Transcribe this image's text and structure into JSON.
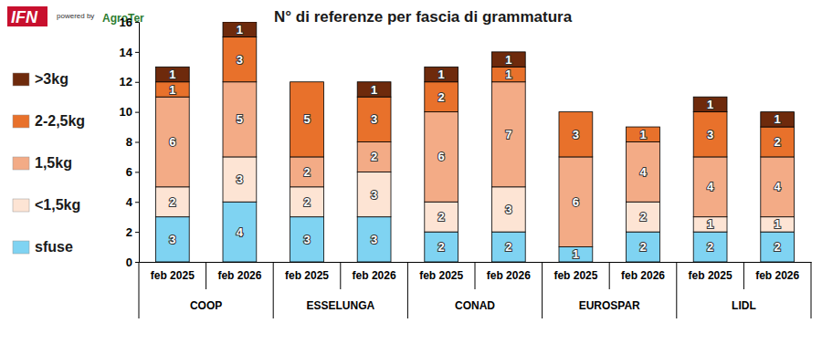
{
  "chart_data": {
    "type": "bar",
    "title": "N° di referenze per fascia di grammatura",
    "annotations": [
      "IFN",
      "powered by",
      "AgroTer"
    ],
    "categories": [
      "feb 2025",
      "feb 2026",
      "feb 2025",
      "feb 2026",
      "feb 2025",
      "feb 2026",
      "feb 2025",
      "feb 2026",
      "feb 2025",
      "feb 2026"
    ],
    "group_labels": [
      "COOP",
      "ESSELUNGA",
      "CONAD",
      "EUROSPAR",
      "LIDL"
    ],
    "series": [
      {
        "name": "sfuse",
        "color": "#7fd3f2",
        "values": [
          3,
          4,
          3,
          3,
          2,
          2,
          1,
          2,
          2,
          2
        ]
      },
      {
        "name": "<1,5kg",
        "color": "#fde4d4",
        "values": [
          2,
          3,
          2,
          3,
          2,
          3,
          null,
          2,
          1,
          1
        ]
      },
      {
        "name": "1,5kg",
        "color": "#f3ab86",
        "values": [
          6,
          5,
          2,
          2,
          6,
          7,
          6,
          4,
          4,
          4
        ]
      },
      {
        "name": "2-2,5kg",
        "color": "#e8712b",
        "values": [
          1,
          3,
          5,
          3,
          2,
          1,
          3,
          1,
          3,
          2
        ]
      },
      {
        "name": ">3kg",
        "color": "#6e2a0c",
        "values": [
          1,
          1,
          null,
          1,
          1,
          1,
          null,
          null,
          1,
          1
        ]
      }
    ],
    "ylim": [
      0,
      16
    ],
    "yticks": [
      0,
      2,
      4,
      6,
      8,
      10,
      12,
      14,
      16
    ],
    "stacked": true,
    "data_labels": true,
    "legend": "left",
    "grid": false
  }
}
